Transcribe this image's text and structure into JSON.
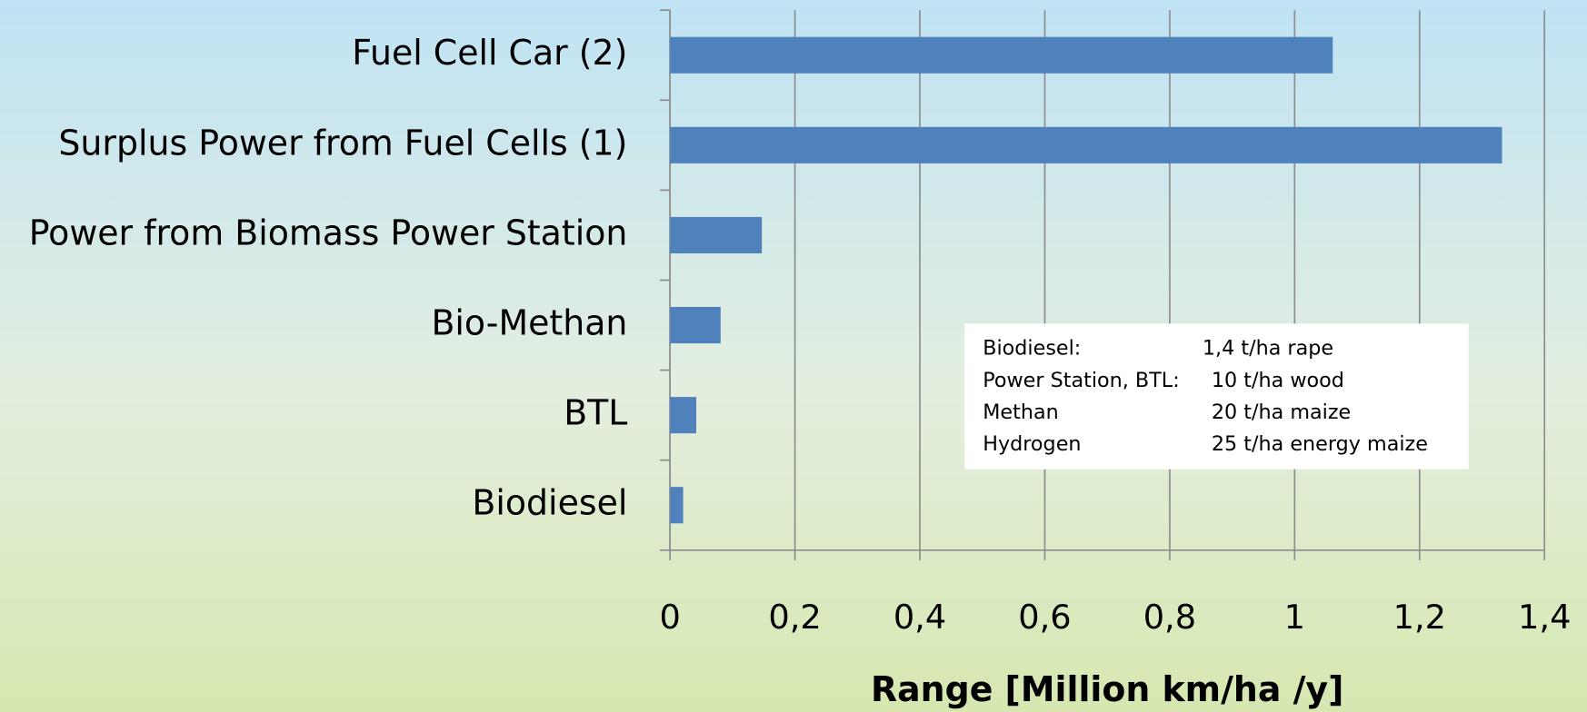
{
  "chart_data": {
    "type": "bar",
    "orientation": "horizontal",
    "categories": [
      "Fuel Cell Car (2)",
      "Surplus Power from Fuel Cells (1)",
      "Power from Biomass Power Station",
      "Bio-Methan",
      "BTL",
      "Biodiesel"
    ],
    "values": [
      1.061,
      1.332,
      0.147,
      0.081,
      0.042,
      0.021
    ],
    "color": "#4f81bd",
    "xlabel": "Range  [Million km/ha /y]",
    "xlim": [
      0,
      1.4
    ],
    "xticks": [
      0,
      {
        "value": 0.2,
        "label": "0,2"
      },
      {
        "value": 0.4,
        "label": "0,4"
      },
      {
        "value": 0.6,
        "label": "0,6"
      },
      {
        "value": 0.8,
        "label": "0,8"
      },
      1,
      {
        "value": 1.2,
        "label": "1,2"
      },
      {
        "value": 1.4,
        "label": "1,4"
      }
    ],
    "grid": true,
    "note": [
      [
        "Biodiesel:",
        "1,4 t/ha rape"
      ],
      [
        "Power Station, BTL:",
        "10 t/ha wood"
      ],
      [
        "Methan",
        "20 t/ha maize"
      ],
      [
        "Hydrogen",
        "25 t/ha energy maize"
      ]
    ]
  }
}
